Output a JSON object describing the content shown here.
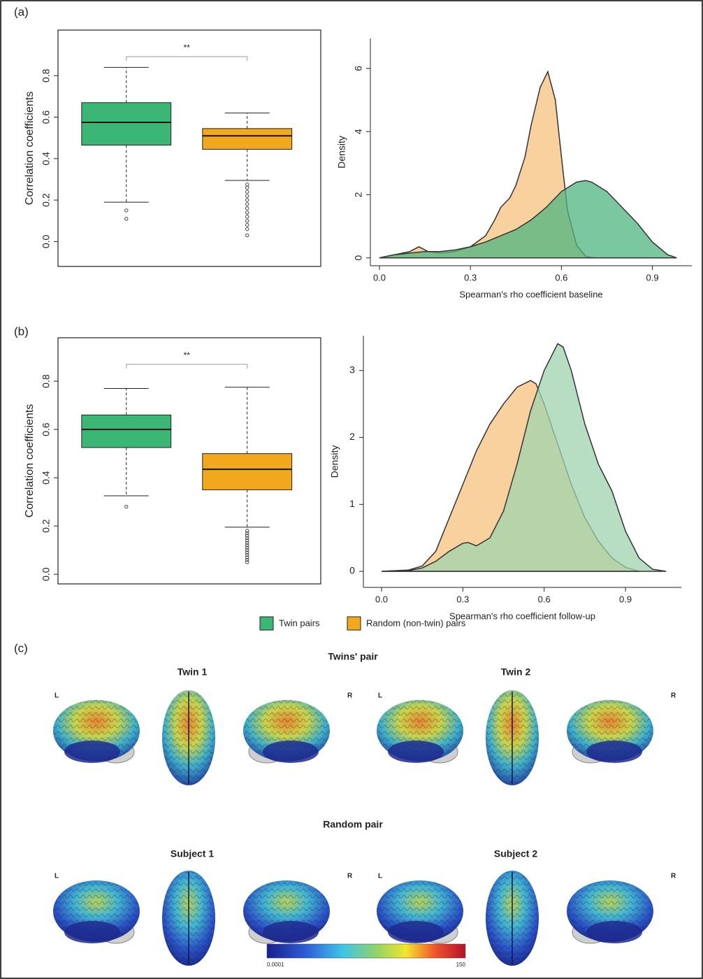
{
  "panel_labels": [
    "(a)",
    "(b)"
  ],
  "chart_data": [
    {
      "type": "box",
      "ylabel": "Correlation coefficients",
      "annotation": "**",
      "ylim": [
        -0.12,
        1.02
      ],
      "yticks": [
        {
          "value": 0,
          "label": "0.0"
        },
        0.2,
        0.4,
        0.6,
        0.8
      ],
      "boxes": [
        {
          "color": "#3cb674",
          "whisker_low": 0.19,
          "q1": 0.465,
          "median": 0.575,
          "q3": 0.67,
          "whisker_high": 0.84,
          "outliers": [
            0.15,
            0.11
          ]
        },
        {
          "color": "#f2a81d",
          "whisker_low": 0.295,
          "q1": 0.445,
          "median": 0.51,
          "q3": 0.545,
          "whisker_high": 0.62,
          "outliers": [
            0.275,
            0.26,
            0.24,
            0.22,
            0.2,
            0.18,
            0.16,
            0.14,
            0.12,
            0.1,
            0.08,
            0.06,
            0.03
          ]
        }
      ]
    },
    {
      "type": "density",
      "xlabel": "Spearman's rho coefficient baseline",
      "ylabel": "Density",
      "xlim": [
        -0.03,
        1.03
      ],
      "xticks": [
        {
          "value": 0,
          "label": "0.0"
        },
        0.3,
        0.6,
        0.9
      ],
      "ylim": [
        -0.25,
        6.95
      ],
      "yticks": [
        0,
        2,
        4,
        6
      ],
      "series": [
        {
          "color": "#f7c27e",
          "x": [
            0,
            0.05,
            0.1,
            0.13,
            0.16,
            0.2,
            0.25,
            0.3,
            0.35,
            0.38,
            0.4,
            0.43,
            0.45,
            0.48,
            0.5,
            0.53,
            0.555,
            0.58,
            0.6,
            0.62,
            0.65,
            0.68,
            0.7,
            0.72
          ],
          "values": [
            0,
            0.1,
            0.2,
            0.35,
            0.2,
            0.15,
            0.2,
            0.35,
            0.7,
            1.2,
            1.6,
            1.9,
            2.3,
            3.2,
            4.2,
            5.4,
            5.9,
            5.0,
            3.2,
            1.5,
            0.4,
            0.05,
            0.01,
            0
          ]
        },
        {
          "color": "#4fb47f",
          "x": [
            0,
            0.05,
            0.1,
            0.15,
            0.2,
            0.25,
            0.3,
            0.35,
            0.4,
            0.45,
            0.5,
            0.55,
            0.6,
            0.65,
            0.68,
            0.7,
            0.75,
            0.8,
            0.85,
            0.9,
            0.95,
            0.98
          ],
          "values": [
            0,
            0.1,
            0.15,
            0.2,
            0.2,
            0.25,
            0.35,
            0.5,
            0.7,
            0.9,
            1.2,
            1.6,
            2.1,
            2.4,
            2.45,
            2.4,
            2.1,
            1.6,
            1.1,
            0.5,
            0.1,
            0
          ]
        }
      ]
    },
    {
      "type": "box",
      "ylabel": "Correlation coefficients",
      "annotation": "**",
      "ylim": [
        -0.04,
        0.98
      ],
      "yticks": [
        {
          "value": 0,
          "label": "0.0"
        },
        0.2,
        0.4,
        0.6,
        0.8
      ],
      "boxes": [
        {
          "color": "#3cb674",
          "whisker_low": 0.325,
          "q1": 0.525,
          "median": 0.6,
          "q3": 0.66,
          "whisker_high": 0.77,
          "outliers": [
            0.28
          ]
        },
        {
          "color": "#f2a81d",
          "whisker_low": 0.195,
          "q1": 0.35,
          "median": 0.435,
          "q3": 0.5,
          "whisker_high": 0.775,
          "outliers": [
            0.18,
            0.17,
            0.16,
            0.15,
            0.14,
            0.13,
            0.12,
            0.11,
            0.1,
            0.09,
            0.08,
            0.07,
            0.06,
            0.05
          ]
        }
      ]
    },
    {
      "type": "density",
      "xlabel": "Spearman's rho coefficient follow-up",
      "ylabel": "Density",
      "xlim": [
        -0.067,
        1.106
      ],
      "xticks": [
        {
          "value": 0,
          "label": "0.0"
        },
        0.3,
        0.6,
        0.9
      ],
      "ylim": [
        -0.24,
        3.52
      ],
      "yticks": [
        0,
        1,
        2,
        3
      ],
      "series": [
        {
          "color": "#f7c27e",
          "x": [
            0,
            0.1,
            0.15,
            0.2,
            0.25,
            0.3,
            0.35,
            0.4,
            0.45,
            0.5,
            0.55,
            0.57,
            0.6,
            0.65,
            0.7,
            0.75,
            0.8,
            0.85,
            0.9,
            0.95
          ],
          "values": [
            0,
            0.02,
            0.08,
            0.3,
            0.8,
            1.3,
            1.8,
            2.2,
            2.5,
            2.75,
            2.85,
            2.8,
            2.5,
            1.9,
            1.3,
            0.8,
            0.45,
            0.2,
            0.06,
            0
          ]
        },
        {
          "color": "#9fd3ae",
          "x": [
            0,
            0.1,
            0.15,
            0.2,
            0.25,
            0.3,
            0.32,
            0.35,
            0.4,
            0.45,
            0.5,
            0.55,
            0.6,
            0.65,
            0.67,
            0.7,
            0.75,
            0.8,
            0.85,
            0.9,
            0.95,
            1.0,
            1.05
          ],
          "values": [
            0,
            0.01,
            0.05,
            0.15,
            0.3,
            0.42,
            0.43,
            0.38,
            0.5,
            0.9,
            1.6,
            2.4,
            3.0,
            3.4,
            3.35,
            3.0,
            2.2,
            1.6,
            1.2,
            0.6,
            0.2,
            0.03,
            0
          ]
        }
      ]
    }
  ],
  "legend": {
    "entries": [
      {
        "name": "Twin pairs",
        "color": "#3cb674"
      },
      {
        "name": "Random (non-twin) pairs",
        "color": "#f2a81d"
      }
    ]
  },
  "panel_c": {
    "label": "(c)",
    "hemisphere_labels": [
      "L",
      "R"
    ],
    "groups": [
      {
        "title": "Twins' pair",
        "subjects": [
          "Twin 1",
          "Twin 2"
        ]
      },
      {
        "title": "Random pair",
        "subjects": [
          "Subject 1",
          "Subject 2"
        ]
      }
    ],
    "colorbar": {
      "range": [
        0.0001,
        150
      ]
    }
  }
}
